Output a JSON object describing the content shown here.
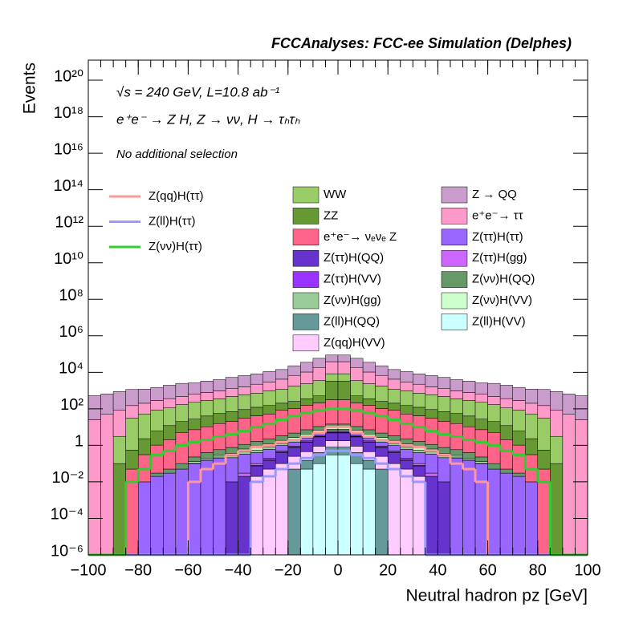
{
  "chart_data": {
    "type": "stacked_histogram",
    "title": "FCCAnalyses: FCC-ee Simulation (Delphes)",
    "annotations": [
      "√s = 240 GeV, L=10.8 ab⁻¹",
      "e⁺e⁻ → Z H, Z → νν, H → τₕτₕ",
      "No additional selection"
    ],
    "x_label": "Neutral hadron pz [GeV]",
    "y_label": "Events",
    "log_y": true,
    "bins": [
      -100,
      -95,
      -90,
      -85,
      -80,
      -75,
      -70,
      -65,
      -60,
      -55,
      -50,
      -45,
      -40,
      -35,
      -30,
      -25,
      -20,
      -15,
      -10,
      -5,
      0,
      5,
      10,
      15,
      20,
      25,
      30,
      35,
      40,
      45,
      50,
      55,
      60,
      65,
      70,
      75,
      80,
      85,
      90,
      95,
      100
    ],
    "xlim": [
      -100,
      100
    ],
    "xticks": [
      {
        "value": -100,
        "label": "−100"
      },
      {
        "value": -80,
        "label": "−80"
      },
      {
        "value": -60,
        "label": "−60"
      },
      {
        "value": -40,
        "label": "−40"
      },
      {
        "value": -20,
        "label": "−20"
      },
      0,
      20,
      40,
      60,
      80,
      100
    ],
    "ylim": [
      1e-06,
      1.26e+21
    ],
    "yticks": [
      {
        "value": 1e-06,
        "label": "10⁻⁶"
      },
      {
        "value": 0.0001,
        "label": "10⁻⁴"
      },
      {
        "value": 0.01,
        "label": "10⁻²"
      },
      1,
      {
        "value": 100,
        "label": "10²"
      },
      {
        "value": 10000,
        "label": "10⁴"
      },
      {
        "value": 1000000.0,
        "label": "10⁶"
      },
      {
        "value": 100000000.0,
        "label": "10⁸"
      },
      {
        "value": 10000000000.0,
        "label": "10¹⁰"
      },
      {
        "value": 1000000000000.0,
        "label": "10¹²"
      },
      {
        "value": 100000000000000.0,
        "label": "10¹⁴"
      },
      {
        "value": 1e+16,
        "label": "10¹⁶"
      },
      {
        "value": 1e+18,
        "label": "10¹⁸"
      },
      {
        "value": 1e+20,
        "label": "10²⁰"
      }
    ],
    "series": [
      {
        "name": "Z → QQ",
        "color": "#c99ccb",
        "values": [
          500,
          600,
          800,
          1000,
          1000,
          1200,
          1600,
          2000,
          2000,
          2500,
          3000,
          4000,
          5000,
          6000,
          8000,
          10000,
          16000,
          25000,
          40000,
          50000,
          50000,
          40000,
          25000,
          16000,
          10000,
          8000,
          6000,
          5000,
          4000,
          3000,
          2500,
          2000,
          2000,
          1600,
          1200,
          1000,
          1000,
          800,
          600,
          500
        ]
      },
      {
        "name": "e⁺e⁻→ ττ",
        "color": "#fd9ac9",
        "values": [
          25,
          50,
          80,
          120,
          150,
          200,
          250,
          300,
          400,
          500,
          600,
          800,
          1000,
          1500,
          2000,
          3000,
          5000,
          8000,
          15000,
          30000,
          30000,
          15000,
          8000,
          5000,
          3000,
          2000,
          1500,
          1000,
          800,
          600,
          500,
          400,
          300,
          250,
          200,
          150,
          120,
          80,
          50,
          25
        ]
      },
      {
        "name": "WW",
        "color": "#99cc66",
        "values": [
          0,
          0,
          3,
          30,
          50,
          80,
          100,
          150,
          200,
          250,
          300,
          400,
          500,
          600,
          800,
          1000,
          1500,
          2000,
          3000,
          5000,
          5000,
          3000,
          2000,
          1500,
          1000,
          800,
          600,
          500,
          400,
          300,
          250,
          200,
          150,
          100,
          80,
          50,
          30,
          3,
          0,
          0
        ]
      },
      {
        "name": "ZZ",
        "color": "#669933",
        "values": [
          0,
          0,
          0.1,
          0.5,
          2,
          5,
          10,
          15,
          20,
          30,
          40,
          50,
          60,
          80,
          100,
          120,
          150,
          200,
          300,
          3000,
          3000,
          300,
          200,
          150,
          120,
          100,
          80,
          60,
          50,
          40,
          30,
          20,
          15,
          10,
          5,
          2,
          0.5,
          0.1,
          0,
          0
        ]
      },
      {
        "name": "e⁺e⁻→ νₑνₑ Z",
        "color": "#fd6487",
        "values": [
          0,
          0,
          0,
          0.05,
          0.3,
          1,
          2,
          5,
          7,
          10,
          15,
          20,
          30,
          40,
          50,
          80,
          100,
          150,
          200,
          300,
          300,
          200,
          150,
          100,
          80,
          50,
          40,
          30,
          20,
          15,
          10,
          7,
          5,
          2,
          1,
          0.3,
          0.05,
          0,
          0,
          0
        ]
      },
      {
        "name": "Z(νν)H(QQ)",
        "color": "#669966",
        "values": [
          0,
          0,
          0,
          0,
          0,
          0.01,
          0.02,
          0.05,
          0.1,
          0.2,
          0.3,
          0.4,
          0.5,
          0.8,
          1,
          1.5,
          2,
          3,
          4,
          5,
          5,
          4,
          3,
          2,
          1.5,
          1,
          0.8,
          0.5,
          0.4,
          0.3,
          0.2,
          0.1,
          0.05,
          0.02,
          0.01,
          0,
          0,
          0,
          0,
          0
        ]
      },
      {
        "name": "Z(νν)H(VV)",
        "color": "#ccffcc",
        "values": [
          0,
          0,
          0,
          0,
          0,
          0,
          0,
          0,
          0.02,
          0.03,
          0.05,
          0.1,
          0.2,
          0.3,
          0.4,
          0.6,
          0.8,
          1,
          1.5,
          2,
          2,
          1.5,
          1,
          0.8,
          0.6,
          0.4,
          0.3,
          0.2,
          0.1,
          0.05,
          0.03,
          0.02,
          0,
          0,
          0,
          0,
          0,
          0,
          0,
          0
        ]
      },
      {
        "name": "Z(νν)H(gg)",
        "color": "#99cc99",
        "values": [
          0,
          0,
          0,
          0,
          0,
          0,
          0,
          0,
          0.01,
          0.02,
          0.03,
          0.05,
          0.1,
          0.15,
          0.2,
          0.3,
          0.4,
          0.6,
          0.8,
          1,
          1,
          0.8,
          0.6,
          0.4,
          0.3,
          0.2,
          0.15,
          0.1,
          0.05,
          0.03,
          0.02,
          0.01,
          0,
          0,
          0,
          0,
          0,
          0,
          0,
          0
        ]
      },
      {
        "name": "Z(ττ)H(ττ)",
        "color": "#9966ff",
        "values": [
          0,
          0,
          0,
          0,
          0.01,
          0.02,
          0.03,
          0.05,
          0.1,
          0.15,
          0.2,
          0.2,
          0.3,
          0.3,
          0.4,
          0.5,
          0.6,
          0.8,
          1,
          1,
          1,
          1,
          0.8,
          0.6,
          0.5,
          0.4,
          0.3,
          0.3,
          0.2,
          0.2,
          0.15,
          0.1,
          0.05,
          0.03,
          0.02,
          0.01,
          0,
          0,
          0,
          0
        ]
      },
      {
        "name": "Z(ττ)H(gg)",
        "color": "#cc66ff",
        "values": [
          0,
          0,
          0,
          0,
          0,
          0,
          0,
          0,
          0,
          0,
          0,
          0,
          0.01,
          0.02,
          0.03,
          0.05,
          0.1,
          0.2,
          0.3,
          0.5,
          0.5,
          0.3,
          0.2,
          0.1,
          0.05,
          0.03,
          0.02,
          0.01,
          0,
          0,
          0,
          0,
          0,
          0,
          0,
          0,
          0,
          0,
          0,
          0
        ]
      },
      {
        "name": "Z(ττ)H(VV)",
        "color": "#9933ff",
        "values": [
          0,
          0,
          0,
          0,
          0,
          0,
          0,
          0,
          0,
          0,
          0,
          0,
          0,
          0.01,
          0.02,
          0.03,
          0.05,
          0.1,
          0.2,
          0.3,
          0.3,
          0.2,
          0.1,
          0.05,
          0.03,
          0.02,
          0.01,
          0,
          0,
          0,
          0,
          0,
          0,
          0,
          0,
          0,
          0,
          0,
          0,
          0
        ]
      },
      {
        "name": "Z(ττ)H(QQ)",
        "color": "#6633cc",
        "values": [
          0,
          0,
          0,
          0,
          0,
          0,
          0,
          0,
          0,
          0,
          0,
          0.01,
          0.02,
          0.05,
          0.1,
          0.3,
          0.5,
          1,
          2,
          3,
          3,
          2,
          1,
          0.5,
          0.3,
          0.1,
          0.05,
          0.02,
          0.01,
          0,
          0,
          0,
          0,
          0,
          0,
          0,
          0,
          0,
          0,
          0
        ]
      },
      {
        "name": "Z(qq)H(VV)",
        "color": "#ffccff",
        "values": [
          0,
          0,
          0,
          0,
          0,
          0,
          0,
          0,
          0,
          0,
          0,
          0,
          0,
          0.02,
          0.05,
          0.1,
          0.2,
          0.3,
          0.5,
          1,
          1,
          0.5,
          0.3,
          0.2,
          0.1,
          0.05,
          0.02,
          0,
          0,
          0,
          0,
          0,
          0,
          0,
          0,
          0,
          0,
          0,
          0,
          0
        ]
      },
      {
        "name": "Z(ll)H(QQ)",
        "color": "#669999",
        "values": [
          0,
          0,
          0,
          0,
          0,
          0,
          0,
          0,
          0,
          0,
          0,
          0,
          0,
          0,
          0,
          0,
          0.05,
          0.1,
          0.3,
          0.5,
          0.5,
          0.3,
          0.1,
          0.05,
          0,
          0,
          0,
          0,
          0,
          0,
          0,
          0,
          0,
          0,
          0,
          0,
          0,
          0,
          0,
          0
        ]
      },
      {
        "name": "Z(ll)H(VV)",
        "color": "#ccffff",
        "values": [
          0,
          0,
          0,
          0,
          0,
          0,
          0,
          0,
          0,
          0,
          0,
          0,
          0,
          0,
          0,
          0,
          0,
          0.05,
          0.1,
          0.3,
          0.3,
          0.1,
          0.05,
          0,
          0,
          0,
          0,
          0,
          0,
          0,
          0,
          0,
          0,
          0,
          0,
          0,
          0,
          0,
          0,
          0
        ]
      }
    ],
    "line_series": [
      {
        "name": "Z(qq)H(ττ)",
        "color": "#ff9999",
        "values": [
          0,
          0,
          0,
          0,
          0,
          0,
          0,
          0,
          0.01,
          0.05,
          0.1,
          0.3,
          0.5,
          0.8,
          1,
          1.5,
          2,
          3,
          5,
          10,
          10,
          5,
          3,
          2,
          1.5,
          1,
          0.8,
          0.5,
          0.3,
          0.1,
          0.05,
          0.01,
          0,
          0,
          0,
          0,
          0,
          0,
          0,
          0
        ]
      },
      {
        "name": "Z(ll)H(ττ)",
        "color": "#9999ff",
        "values": [
          0,
          0,
          0,
          0,
          0,
          0,
          0,
          0,
          0,
          0,
          0,
          0,
          0,
          0.01,
          0.02,
          0.05,
          0.1,
          0.2,
          0.3,
          0.5,
          0.5,
          0.3,
          0.2,
          0.1,
          0.05,
          0.02,
          0.01,
          0,
          0,
          0,
          0,
          0,
          0,
          0,
          0,
          0,
          0,
          0,
          0,
          0
        ]
      },
      {
        "name": "Z(νν)H(ττ)",
        "color": "#33cc33",
        "values": [
          0,
          0,
          0,
          0.01,
          0.05,
          0.3,
          0.5,
          1,
          1.5,
          2,
          3,
          4,
          6,
          10,
          15,
          25,
          40,
          60,
          80,
          100,
          100,
          80,
          60,
          40,
          25,
          15,
          10,
          6,
          4,
          3,
          2,
          1.5,
          1,
          0.5,
          0.3,
          0.05,
          0.01,
          0,
          0,
          0
        ]
      }
    ]
  }
}
